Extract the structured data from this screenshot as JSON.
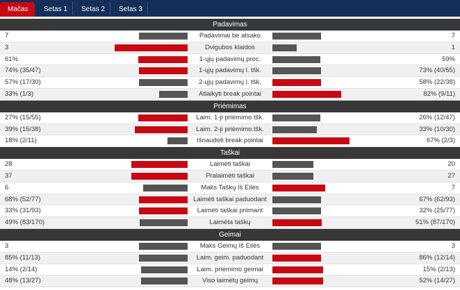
{
  "tabs": [
    "Mačas",
    "Setas 1",
    "Setas 2",
    "Setas 3"
  ],
  "active_tab": 0,
  "colors": {
    "winner_bar": "#c80913",
    "other_bar": "#555555",
    "header_bg": "#383838",
    "tab_bg": "#152f5a"
  },
  "sections": [
    {
      "title": "Padavimas",
      "rows": [
        {
          "label": "Padavimai be atsako",
          "home": "7",
          "away": "7",
          "home_share": 0.5,
          "away_share": 0.5,
          "winner": "none"
        },
        {
          "label": "Dvigubos klaidos",
          "home": "3",
          "away": "1",
          "home_share": 0.75,
          "away_share": 0.25,
          "winner": "home"
        },
        {
          "label": "1-ųjų padavimų proc.",
          "home": "61%",
          "away": "59%",
          "home_share": 0.51,
          "away_share": 0.49,
          "winner": "home"
        },
        {
          "label": "1-ųjų padavimų l. tšk.",
          "home": "74% (35/47)",
          "away": "73% (40/55)",
          "home_share": 0.5,
          "away_share": 0.5,
          "winner": "home"
        },
        {
          "label": "2-ųjų padavimų l. tšk.",
          "home": "57% (17/30)",
          "away": "58% (22/38)",
          "home_share": 0.5,
          "away_share": 0.5,
          "winner": "away"
        },
        {
          "label": "Atlaikyti break pointai",
          "home": "33% (1/3)",
          "away": "82% (9/11)",
          "home_share": 0.29,
          "away_share": 0.71,
          "winner": "away"
        }
      ]
    },
    {
      "title": "Priėmimas",
      "rows": [
        {
          "label": "Laim. 1-ji priėmimo tšk.",
          "home": "27% (15/55)",
          "away": "26% (12/47)",
          "home_share": 0.51,
          "away_share": 0.49,
          "winner": "home"
        },
        {
          "label": "Laim. 2-ji priėmimo tšk.",
          "home": "39% (15/38)",
          "away": "33% (10/30)",
          "home_share": 0.54,
          "away_share": 0.46,
          "winner": "home"
        },
        {
          "label": "Išnaudoti break pointai",
          "home": "18% (2/11)",
          "away": "67% (2/3)",
          "home_share": 0.21,
          "away_share": 0.79,
          "winner": "away"
        }
      ]
    },
    {
      "title": "Taškai",
      "rows": [
        {
          "label": "Laimėti taškai",
          "home": "28",
          "away": "20",
          "home_share": 0.58,
          "away_share": 0.42,
          "winner": "home"
        },
        {
          "label": "Pralaimėti taškai",
          "home": "37",
          "away": "27",
          "home_share": 0.58,
          "away_share": 0.42,
          "winner": "home"
        },
        {
          "label": "Maks Taškų Iš Eilės",
          "home": "6",
          "away": "7",
          "home_share": 0.46,
          "away_share": 0.54,
          "winner": "away"
        },
        {
          "label": "Laimėti taškai paduodant",
          "home": "68% (52/77)",
          "away": "67% (62/93)",
          "home_share": 0.5,
          "away_share": 0.5,
          "winner": "home"
        },
        {
          "label": "Laimėti taškai priimant",
          "home": "33% (31/93)",
          "away": "32% (25/77)",
          "home_share": 0.5,
          "away_share": 0.5,
          "winner": "home"
        },
        {
          "label": "Laimėta taškų",
          "home": "49% (83/170)",
          "away": "51% (87/170)",
          "home_share": 0.49,
          "away_share": 0.51,
          "winner": "away"
        }
      ]
    },
    {
      "title": "Geimai",
      "rows": [
        {
          "label": "Maks Geimų Iš Eilės",
          "home": "3",
          "away": "3",
          "home_share": 0.5,
          "away_share": 0.5,
          "winner": "none"
        },
        {
          "label": "Laim. geim. paduodant",
          "home": "85% (11/13)",
          "away": "86% (12/14)",
          "home_share": 0.5,
          "away_share": 0.5,
          "winner": "away"
        },
        {
          "label": "Laim. priėmimo geimai",
          "home": "14% (2/14)",
          "away": "15% (2/13)",
          "home_share": 0.48,
          "away_share": 0.52,
          "winner": "away"
        },
        {
          "label": "Viso laimėtų geimų",
          "home": "48% (13/27)",
          "away": "52% (14/27)",
          "home_share": 0.48,
          "away_share": 0.52,
          "winner": "away"
        }
      ]
    }
  ]
}
